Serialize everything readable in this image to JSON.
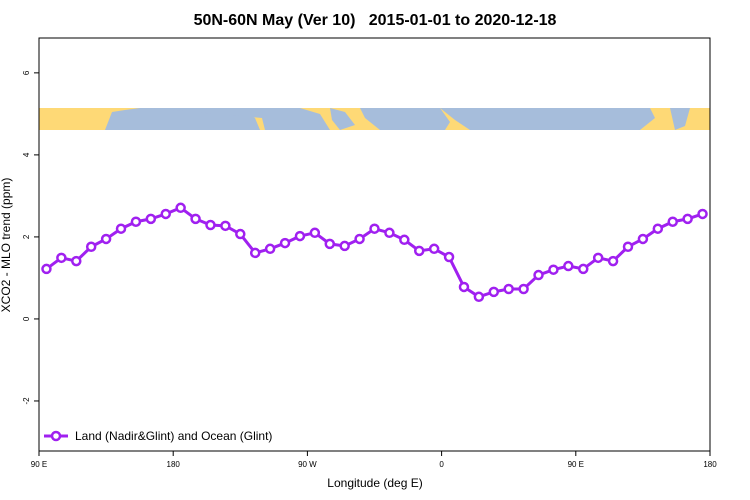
{
  "chart_data": {
    "type": "line",
    "title": "50N-60N May (Ver 10)   2015-01-01 to 2020-12-18",
    "x_label": "Longitude (deg E)",
    "y_label": "XCO2 - MLO trend (ppm)",
    "x": [
      95,
      105,
      115,
      125,
      135,
      145,
      155,
      165,
      175,
      185,
      195,
      205,
      215,
      225,
      235,
      245,
      255,
      265,
      275,
      285,
      295,
      305,
      315,
      325,
      335,
      345,
      355,
      365,
      375,
      385,
      395,
      405,
      415,
      425,
      435,
      445,
      455,
      465,
      475,
      485,
      495,
      505,
      515,
      525,
      535
    ],
    "series": [
      {
        "name": "Land (Nadir&Glint) and Ocean (Glint)",
        "color": "#a020f0",
        "values": [
          1.22,
          1.49,
          1.41,
          1.76,
          1.95,
          2.2,
          2.37,
          2.44,
          2.56,
          2.71,
          2.44,
          2.29,
          2.27,
          2.07,
          1.61,
          1.71,
          1.85,
          2.02,
          2.1,
          1.83,
          1.78,
          1.95,
          2.2,
          2.1,
          1.93,
          1.66,
          1.71,
          1.51,
          0.78,
          0.54,
          0.66,
          0.73,
          0.73,
          1.07,
          1.2,
          1.29,
          1.22,
          1.49,
          1.41,
          1.76,
          1.95,
          2.2,
          2.37,
          2.44,
          2.56
        ]
      }
    ],
    "xlim": [
      90,
      540
    ],
    "xticks": [
      {
        "value": 90,
        "label": "90 E"
      },
      180,
      {
        "value": 270,
        "label": "90 W"
      },
      {
        "value": 360,
        "label": "0"
      },
      {
        "value": 450,
        "label": "90 E"
      },
      {
        "value": 540,
        "label": "180"
      }
    ],
    "ylim": [
      -3.22,
      6.85
    ],
    "yticks": [
      -2,
      0,
      2,
      4,
      6
    ],
    "legend": "bottom-left"
  }
}
